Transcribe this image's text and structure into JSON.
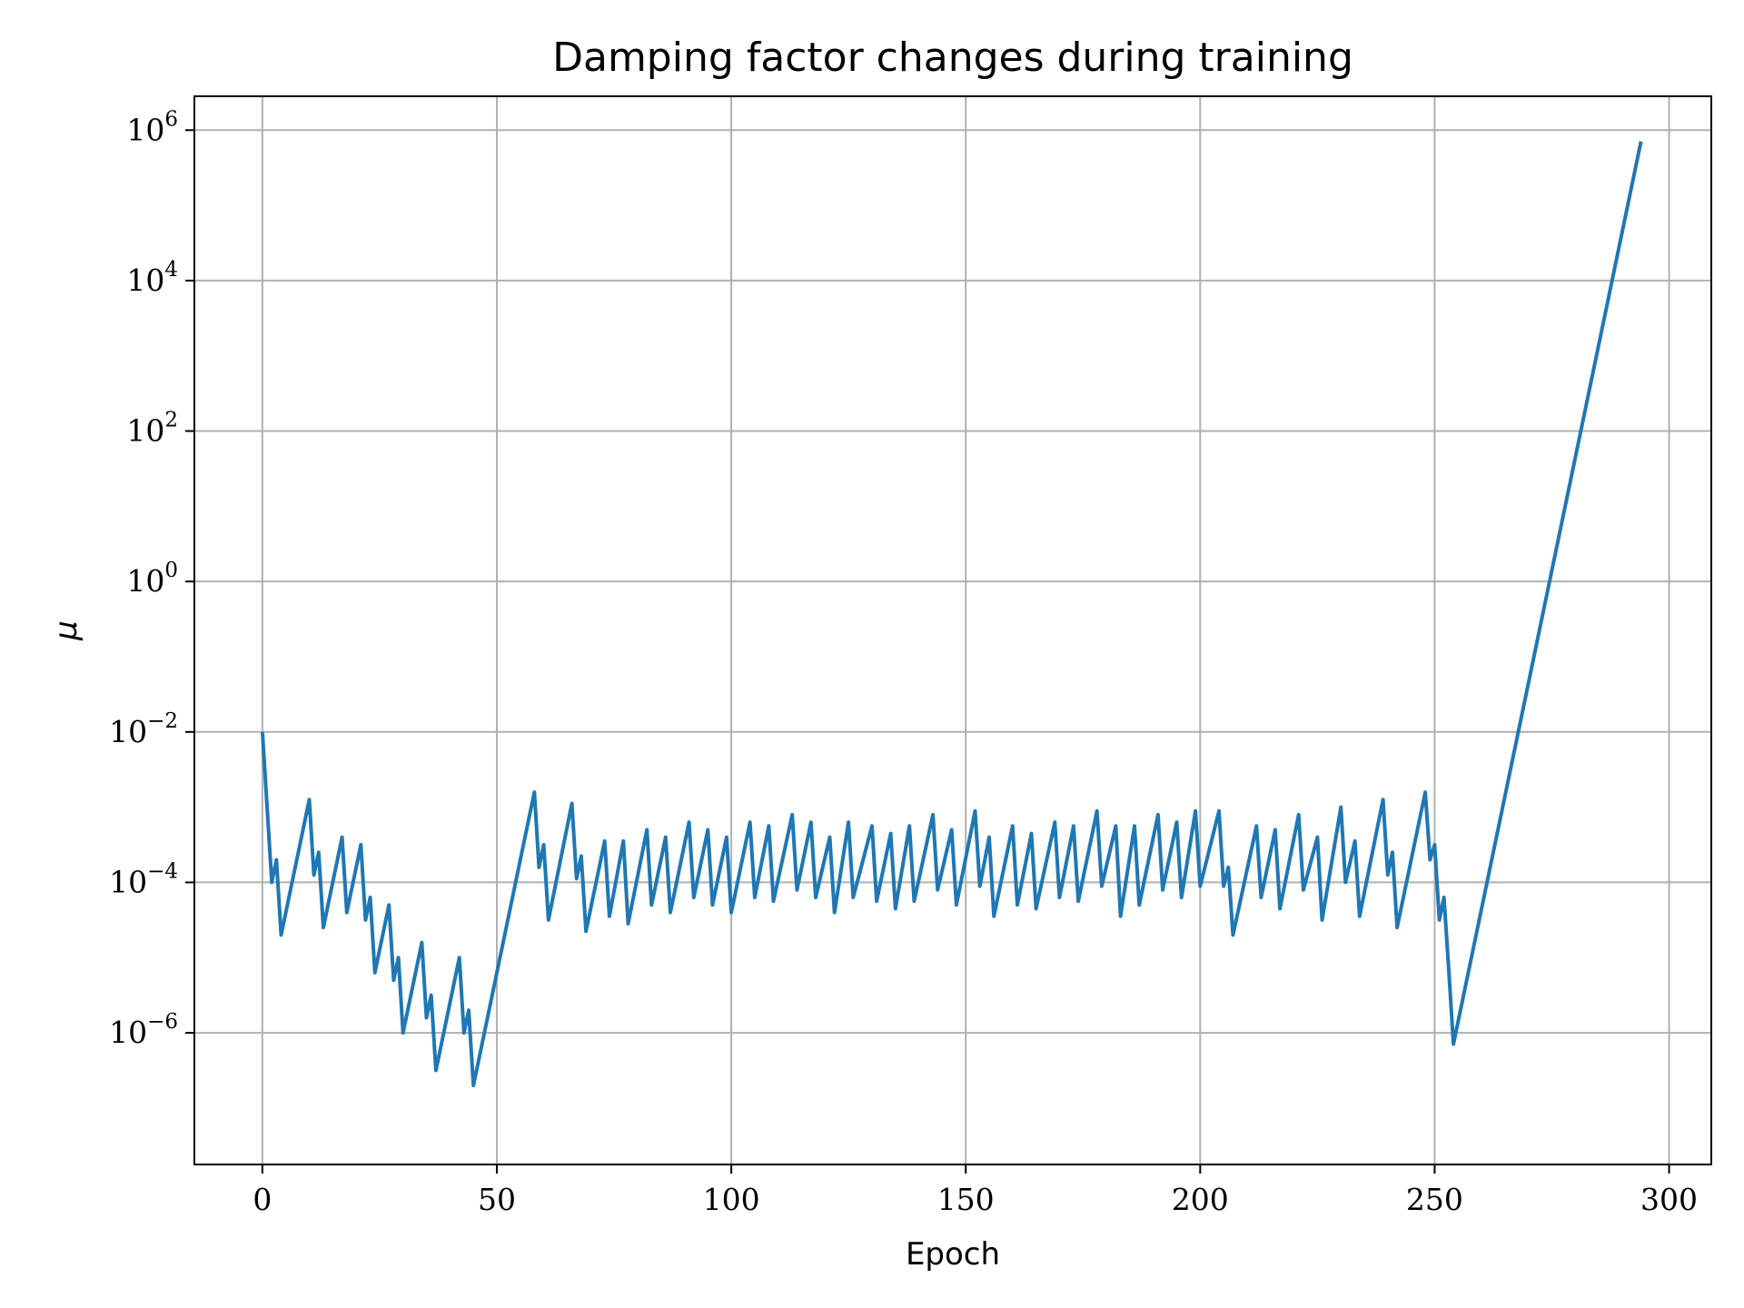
{
  "chart_data": {
    "type": "line",
    "title": "Damping factor changes during training",
    "xlabel": "Epoch",
    "ylabel": "μ",
    "xlim": [
      -14.5,
      309
    ],
    "ylim_log10": [
      -7.75,
      6.45
    ],
    "y_scale": "log",
    "grid": true,
    "x_ticks": [
      0,
      50,
      100,
      150,
      200,
      250,
      300
    ],
    "x_tick_labels": [
      "0",
      "50",
      "100",
      "150",
      "200",
      "250",
      "300"
    ],
    "y_ticks_log10": [
      -6,
      -4,
      -2,
      0,
      2,
      4,
      6
    ],
    "y_tick_labels": [
      {
        "base": "10",
        "exp": "−6"
      },
      {
        "base": "10",
        "exp": "−4"
      },
      {
        "base": "10",
        "exp": "−2"
      },
      {
        "base": "10",
        "exp": "0"
      },
      {
        "base": "10",
        "exp": "2"
      },
      {
        "base": "10",
        "exp": "4"
      },
      {
        "base": "10",
        "exp": "6"
      }
    ],
    "series": [
      {
        "color": "#1f77b4",
        "x": [
          0,
          2,
          3,
          4,
          10,
          11,
          12,
          13,
          17,
          18,
          21,
          22,
          23,
          24,
          27,
          28,
          29,
          30,
          34,
          35,
          36,
          37,
          42,
          43,
          44,
          45,
          58,
          59,
          60,
          61,
          66,
          67,
          68,
          69,
          73,
          74,
          77,
          78,
          82,
          83,
          86,
          87,
          91,
          92,
          95,
          96,
          99,
          100,
          104,
          105,
          108,
          109,
          113,
          114,
          117,
          118,
          121,
          122,
          125,
          126,
          130,
          131,
          134,
          135,
          138,
          139,
          143,
          144,
          147,
          148,
          152,
          153,
          155,
          156,
          160,
          161,
          164,
          165,
          169,
          170,
          173,
          174,
          178,
          179,
          182,
          183,
          186,
          187,
          191,
          192,
          195,
          196,
          199,
          200,
          204,
          205,
          206,
          207,
          212,
          213,
          216,
          217,
          221,
          222,
          225,
          226,
          230,
          231,
          233,
          234,
          239,
          240,
          241,
          242,
          248,
          249,
          250,
          251,
          252,
          253,
          254,
          294
        ],
        "y_log10": [
          -2.0,
          -4.0,
          -3.7,
          -4.7,
          -2.9,
          -3.9,
          -3.6,
          -4.6,
          -3.4,
          -4.4,
          -3.5,
          -4.5,
          -4.2,
          -5.2,
          -4.3,
          -5.3,
          -5.0,
          -6.0,
          -4.8,
          -5.8,
          -5.5,
          -6.5,
          -5.0,
          -6.0,
          -5.7,
          -6.7,
          -2.8,
          -3.8,
          -3.5,
          -4.5,
          -2.95,
          -3.95,
          -3.65,
          -4.65,
          -3.45,
          -4.45,
          -3.45,
          -4.55,
          -3.3,
          -4.3,
          -3.4,
          -4.4,
          -3.2,
          -4.2,
          -3.3,
          -4.3,
          -3.4,
          -4.4,
          -3.2,
          -4.2,
          -3.25,
          -4.25,
          -3.1,
          -4.1,
          -3.2,
          -4.2,
          -3.4,
          -4.4,
          -3.2,
          -4.2,
          -3.25,
          -4.25,
          -3.35,
          -4.35,
          -3.25,
          -4.25,
          -3.1,
          -4.1,
          -3.3,
          -4.3,
          -3.05,
          -4.05,
          -3.4,
          -4.45,
          -3.25,
          -4.3,
          -3.35,
          -4.35,
          -3.2,
          -4.2,
          -3.25,
          -4.25,
          -3.05,
          -4.05,
          -3.25,
          -4.45,
          -3.25,
          -4.3,
          -3.1,
          -4.1,
          -3.2,
          -4.2,
          -3.05,
          -4.05,
          -3.05,
          -4.05,
          -3.8,
          -4.7,
          -3.25,
          -4.2,
          -3.3,
          -4.35,
          -3.1,
          -4.1,
          -3.4,
          -4.5,
          -3.0,
          -4.0,
          -3.45,
          -4.45,
          -2.9,
          -3.9,
          -3.6,
          -4.6,
          -2.8,
          -3.7,
          -3.5,
          -4.5,
          -4.2,
          -5.15,
          -6.15,
          5.85
        ]
      }
    ]
  }
}
